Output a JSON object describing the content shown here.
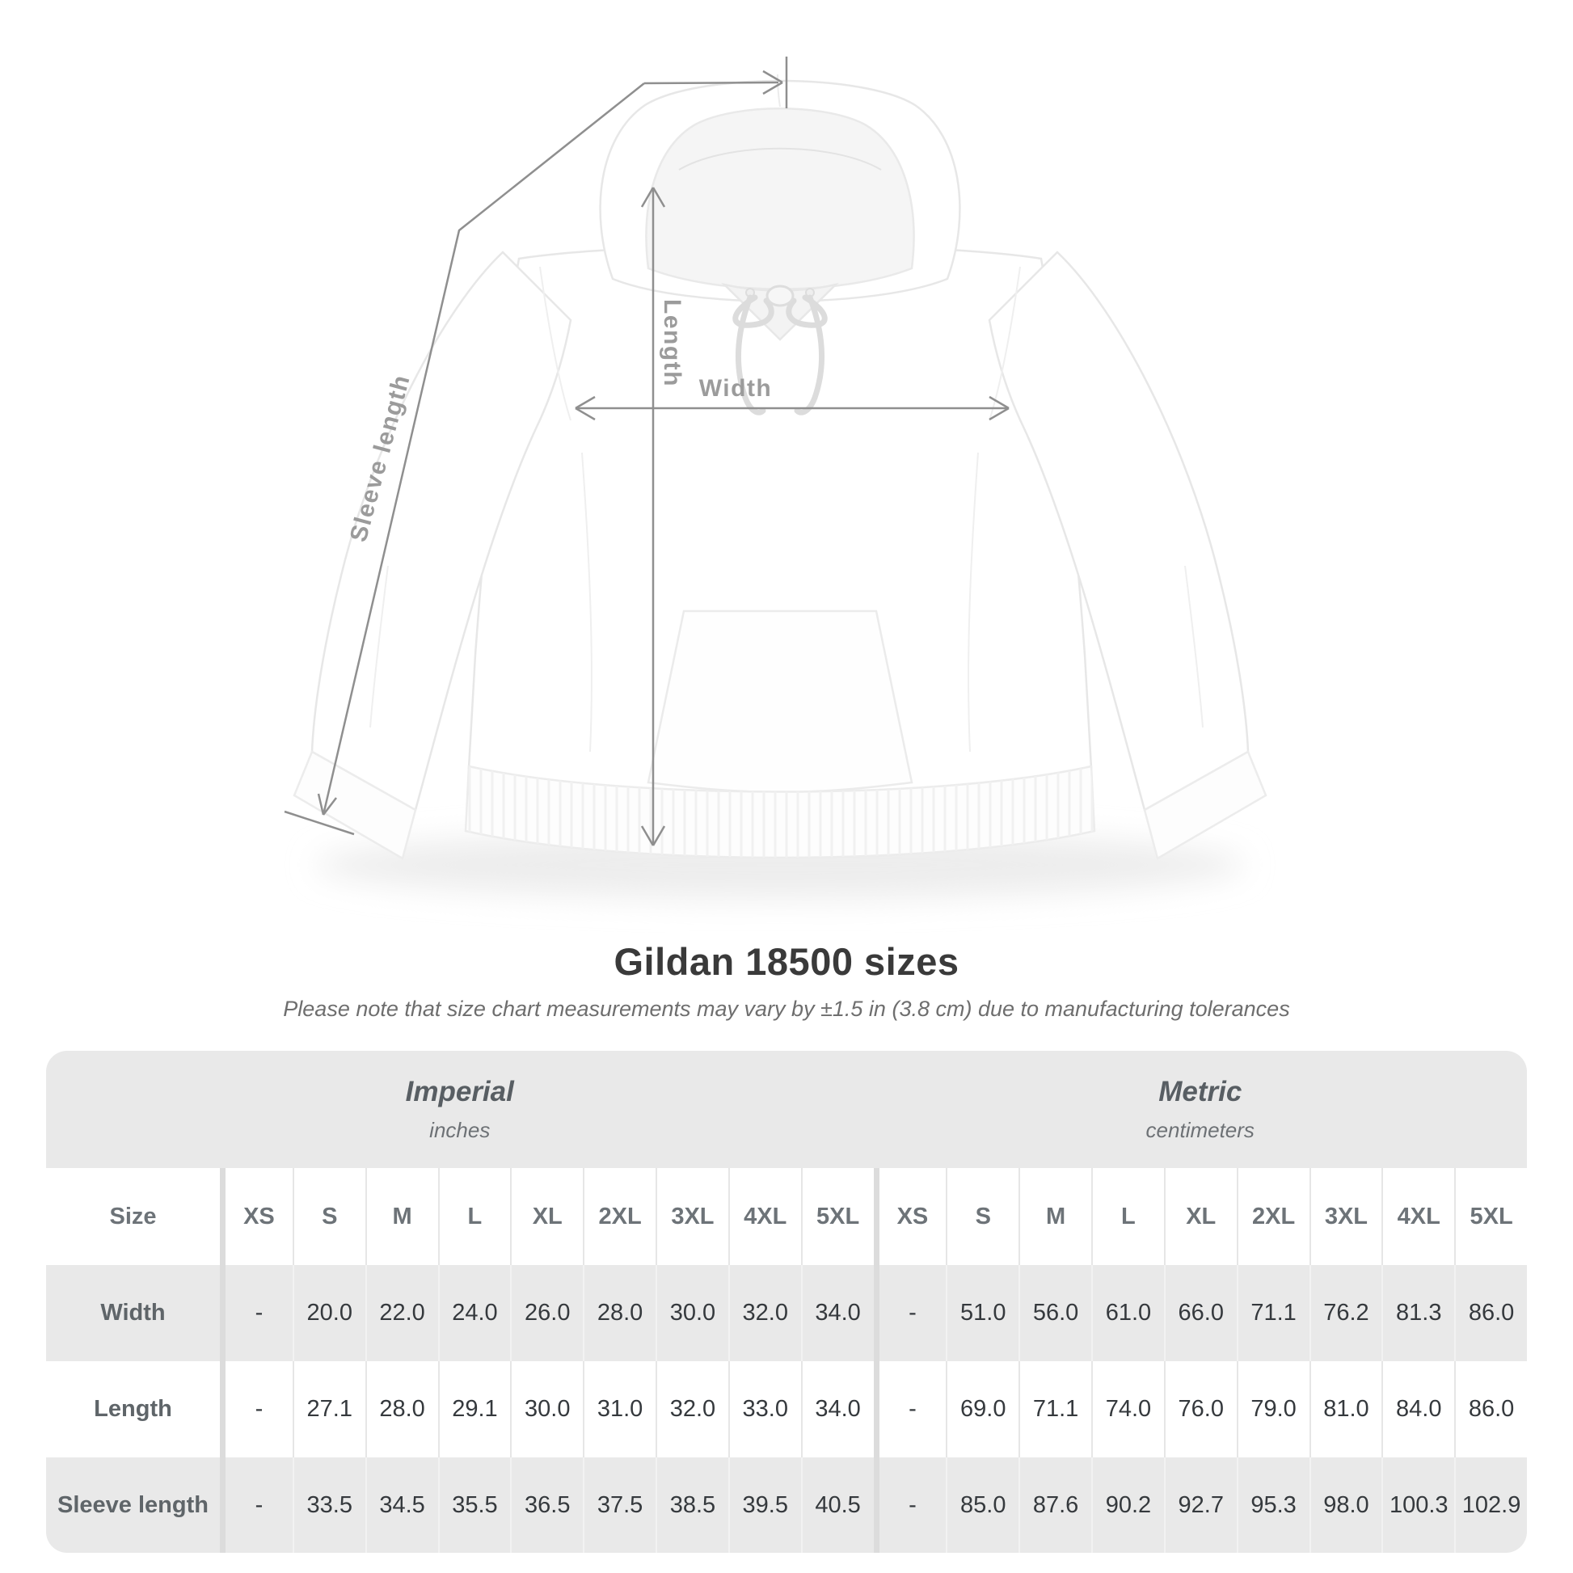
{
  "heading": {
    "title": "Gildan 18500 sizes",
    "subtitle": "Please note that size chart measurements may vary by ±1.5 in (3.8 cm) due to manufacturing tolerances"
  },
  "diagram": {
    "labels": {
      "length": "Length",
      "width": "Width",
      "sleeve_length": "Sleeve length"
    },
    "line_color": "#8f8f8f",
    "label_color": "#9b9b9b"
  },
  "chart_data": {
    "type": "table",
    "title": "Gildan 18500 sizes",
    "corner_label": "Size",
    "column_groups": [
      {
        "name": "Imperial",
        "unit": "inches"
      },
      {
        "name": "Metric",
        "unit": "centimeters"
      }
    ],
    "sizes": [
      "XS",
      "S",
      "M",
      "L",
      "XL",
      "2XL",
      "3XL",
      "4XL",
      "5XL"
    ],
    "rows": [
      {
        "label": "Width",
        "imperial": [
          "-",
          "20.0",
          "22.0",
          "24.0",
          "26.0",
          "28.0",
          "30.0",
          "32.0",
          "34.0"
        ],
        "metric": [
          "-",
          "51.0",
          "56.0",
          "61.0",
          "66.0",
          "71.1",
          "76.2",
          "81.3",
          "86.0"
        ]
      },
      {
        "label": "Length",
        "imperial": [
          "-",
          "27.1",
          "28.0",
          "29.1",
          "30.0",
          "31.0",
          "32.0",
          "33.0",
          "34.0"
        ],
        "metric": [
          "-",
          "69.0",
          "71.1",
          "74.0",
          "76.0",
          "79.0",
          "81.0",
          "84.0",
          "86.0"
        ]
      },
      {
        "label": "Sleeve length",
        "imperial": [
          "-",
          "33.5",
          "34.5",
          "35.5",
          "36.5",
          "37.5",
          "38.5",
          "39.5",
          "40.5"
        ],
        "metric": [
          "-",
          "85.0",
          "87.6",
          "90.2",
          "92.7",
          "95.3",
          "98.0",
          "100.3",
          "102.9"
        ]
      }
    ]
  },
  "colors": {
    "table_band": "#e9e9e9",
    "title_text": "#3a3a3a",
    "muted_text": "#6e6e6e",
    "value_text": "#35393d"
  }
}
